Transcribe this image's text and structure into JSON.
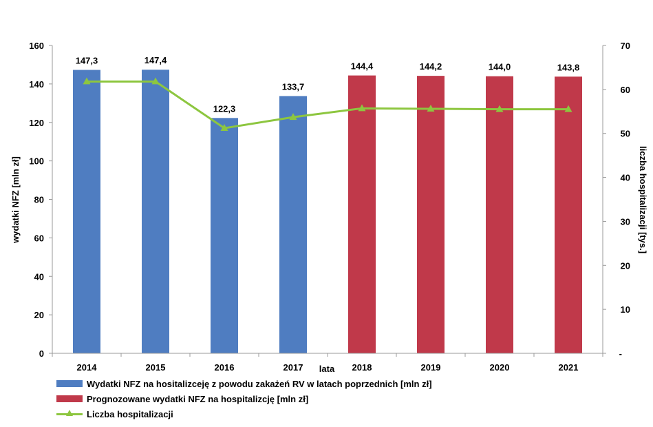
{
  "chart_data": {
    "type": "bar",
    "categories": [
      "2014",
      "2015",
      "2016",
      "2017",
      "2018",
      "2019",
      "2020",
      "2021"
    ],
    "series": [
      {
        "name": "Wydatki NFZ na hositalizceję z powodu zakażeń RV w latach poprzednich [mln zł]",
        "axis": "left",
        "color": "#4f7dc1",
        "values": [
          147.3,
          147.4,
          122.3,
          133.7,
          null,
          null,
          null,
          null
        ],
        "labels": [
          "147,3",
          "147,4",
          "122,3",
          "133,7",
          null,
          null,
          null,
          null
        ]
      },
      {
        "name": "Prognozowane wydatki NFZ na hospitalizcję  [mln zł]",
        "axis": "left",
        "color": "#c0394a",
        "values": [
          null,
          null,
          null,
          null,
          144.4,
          144.2,
          144.0,
          143.8
        ],
        "labels": [
          null,
          null,
          null,
          null,
          "144,4",
          "144,2",
          "144,0",
          "143,8"
        ]
      },
      {
        "name": "Liczba hospitalizacji",
        "type": "line",
        "axis": "right",
        "color": "#8dc63f",
        "marker": "triangle",
        "values": [
          61.8,
          61.8,
          51.2,
          53.7,
          55.7,
          55.6,
          55.5,
          55.5
        ]
      }
    ],
    "xlabel": "lata",
    "ylabel": "wydatki NFZ [mln zł]",
    "y2label": "liczba hospitalizacji [tys.]",
    "ylim": [
      0,
      160
    ],
    "yticks": [
      "0",
      "20",
      "40",
      "60",
      "80",
      "100",
      "120",
      "140",
      "160"
    ],
    "y2lim": [
      0,
      70
    ],
    "y2ticks": [
      "-",
      "10",
      "20",
      "30",
      "40",
      "50",
      "60",
      "70"
    ],
    "grid": false,
    "legend_position": "bottom-left"
  }
}
